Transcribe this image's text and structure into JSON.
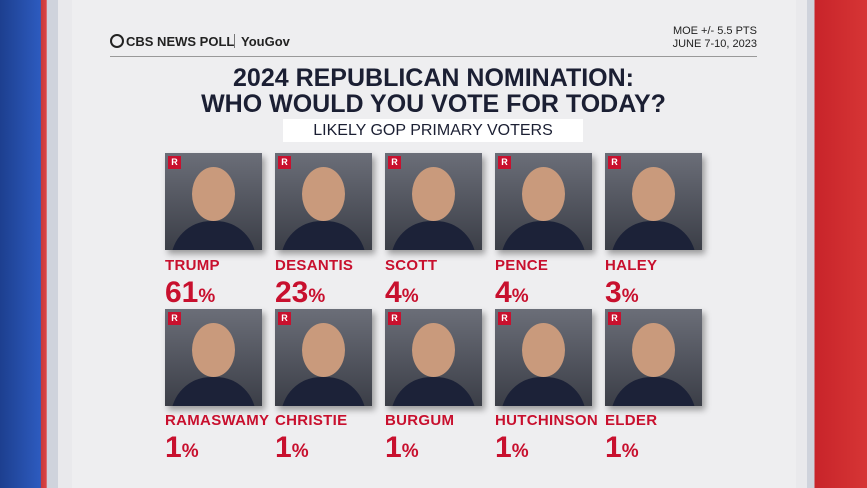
{
  "header": {
    "brand": "CBS NEWS POLL",
    "partner": "YouGov",
    "moe": "MOE +/- 5.5 PTS",
    "dates": "JUNE 7-10, 2023"
  },
  "title": {
    "line1": "2024 REPUBLICAN NOMINATION:",
    "line2": "WHO WOULD YOU VOTE FOR TODAY?"
  },
  "subtitle": "LIKELY GOP PRIMARY VOTERS",
  "percent_sign": "%",
  "candidates": [
    {
      "name": "TRUMP",
      "party": "R",
      "percent": 61
    },
    {
      "name": "DESANTIS",
      "party": "R",
      "percent": 23
    },
    {
      "name": "SCOTT",
      "party": "R",
      "percent": 4
    },
    {
      "name": "PENCE",
      "party": "R",
      "percent": 4
    },
    {
      "name": "HALEY",
      "party": "R",
      "percent": 3
    },
    {
      "name": "RAMASWAMY",
      "party": "R",
      "percent": 1
    },
    {
      "name": "CHRISTIE",
      "party": "R",
      "percent": 1
    },
    {
      "name": "BURGUM",
      "party": "R",
      "percent": 1
    },
    {
      "name": "HUTCHINSON",
      "party": "R",
      "percent": 1
    },
    {
      "name": "ELDER",
      "party": "R",
      "percent": 1
    }
  ]
}
